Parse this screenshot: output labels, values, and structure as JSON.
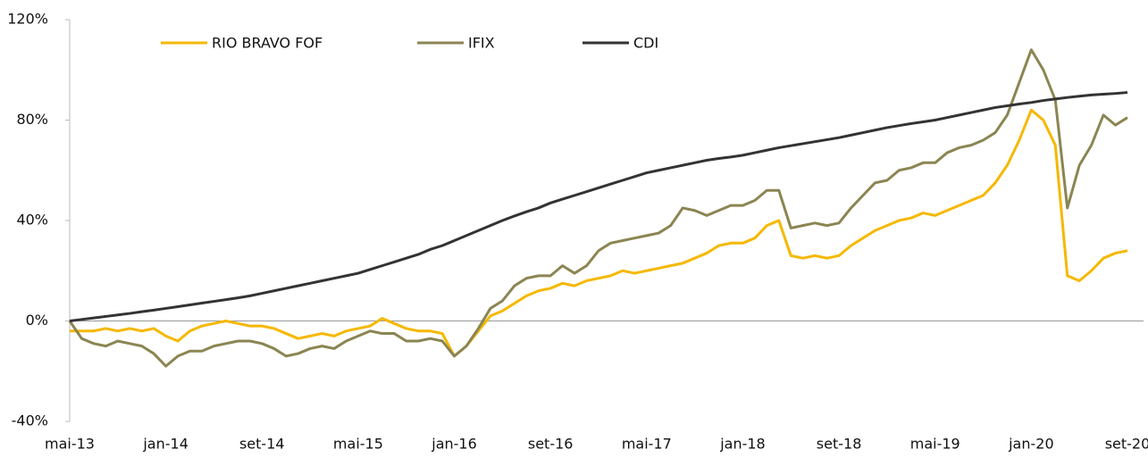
{
  "chart_data": {
    "type": "line",
    "categories": [
      "mai-13",
      null,
      null,
      null,
      null,
      null,
      null,
      null,
      "jan-14",
      null,
      null,
      null,
      null,
      null,
      null,
      null,
      "set-14",
      null,
      null,
      null,
      null,
      null,
      null,
      null,
      "mai-15",
      null,
      null,
      null,
      null,
      null,
      null,
      null,
      "jan-16",
      null,
      null,
      null,
      null,
      null,
      null,
      null,
      "set-16",
      null,
      null,
      null,
      null,
      null,
      null,
      null,
      "mai-17",
      null,
      null,
      null,
      null,
      null,
      null,
      null,
      "jan-18",
      null,
      null,
      null,
      null,
      null,
      null,
      null,
      "set-18",
      null,
      null,
      null,
      null,
      null,
      null,
      null,
      "mai-19",
      null,
      null,
      null,
      null,
      null,
      null,
      null,
      "jan-20",
      null,
      null,
      null,
      null,
      null,
      null,
      null,
      "set-20"
    ],
    "series": [
      {
        "name": "RIO BRAVO FOF",
        "color": "#f5b800",
        "values": [
          -4,
          -4,
          -4,
          -3,
          -4,
          -3,
          -4,
          -3,
          -6,
          -8,
          -4,
          -2,
          -1,
          0,
          -1,
          -2,
          -2,
          -3,
          -5,
          -7,
          -6,
          -5,
          -6,
          -4,
          -3,
          -2,
          1,
          -1,
          -3,
          -4,
          -4,
          -5,
          -14,
          -10,
          -4,
          2,
          4,
          7,
          10,
          12,
          13,
          15,
          14,
          16,
          17,
          18,
          20,
          19,
          20,
          21,
          22,
          23,
          25,
          27,
          30,
          31,
          31,
          33,
          38,
          40,
          26,
          25,
          26,
          25,
          26,
          30,
          33,
          36,
          38,
          40,
          41,
          43,
          42,
          44,
          46,
          48,
          50,
          55,
          62,
          72,
          84,
          80,
          70,
          18,
          16,
          20,
          25,
          27,
          28
        ]
      },
      {
        "name": "IFIX",
        "color": "#8b8552",
        "values": [
          0,
          -7,
          -9,
          -10,
          -8,
          -9,
          -10,
          -13,
          -18,
          -14,
          -12,
          -12,
          -10,
          -9,
          -8,
          -8,
          -9,
          -11,
          -14,
          -13,
          -11,
          -10,
          -11,
          -8,
          -6,
          -4,
          -5,
          -5,
          -8,
          -8,
          -7,
          -8,
          -14,
          -10,
          -3,
          5,
          8,
          14,
          17,
          18,
          18,
          22,
          19,
          22,
          28,
          31,
          32,
          33,
          34,
          35,
          38,
          45,
          44,
          42,
          44,
          46,
          46,
          48,
          52,
          52,
          37,
          38,
          39,
          38,
          39,
          45,
          50,
          55,
          56,
          60,
          61,
          63,
          63,
          67,
          69,
          70,
          72,
          75,
          82,
          95,
          108,
          100,
          88,
          45,
          62,
          70,
          82,
          78,
          81
        ]
      },
      {
        "name": "CDI",
        "color": "#333333",
        "values": [
          0,
          0.6,
          1.2,
          1.8,
          2.4,
          3,
          3.7,
          4.3,
          5,
          5.7,
          6.4,
          7.1,
          7.8,
          8.5,
          9.2,
          10,
          11,
          12,
          13,
          14,
          15,
          16,
          17,
          18,
          19,
          20.5,
          22,
          23.5,
          25,
          26.5,
          28.5,
          30,
          32,
          34,
          36,
          38,
          40,
          41.8,
          43.5,
          45,
          47,
          48.5,
          50,
          51.5,
          53,
          54.5,
          56,
          57.5,
          59,
          60,
          61,
          62,
          63,
          64,
          64.7,
          65.3,
          66,
          67,
          68,
          69,
          69.8,
          70.6,
          71.4,
          72.2,
          73,
          74,
          75,
          76,
          77,
          77.8,
          78.6,
          79.3,
          80,
          81,
          82,
          83,
          84,
          85,
          85.7,
          86.4,
          87,
          87.8,
          88.4,
          89,
          89.5,
          90,
          90.3,
          90.6,
          91
        ]
      }
    ],
    "ylim": [
      -40,
      120
    ],
    "yticks": [
      {
        "value": -40,
        "label": "-40%"
      },
      {
        "value": 0,
        "label": "0%"
      },
      {
        "value": 40,
        "label": "40%"
      },
      {
        "value": 80,
        "label": "80%"
      },
      {
        "value": 120,
        "label": "120%"
      }
    ],
    "legend": "top"
  }
}
